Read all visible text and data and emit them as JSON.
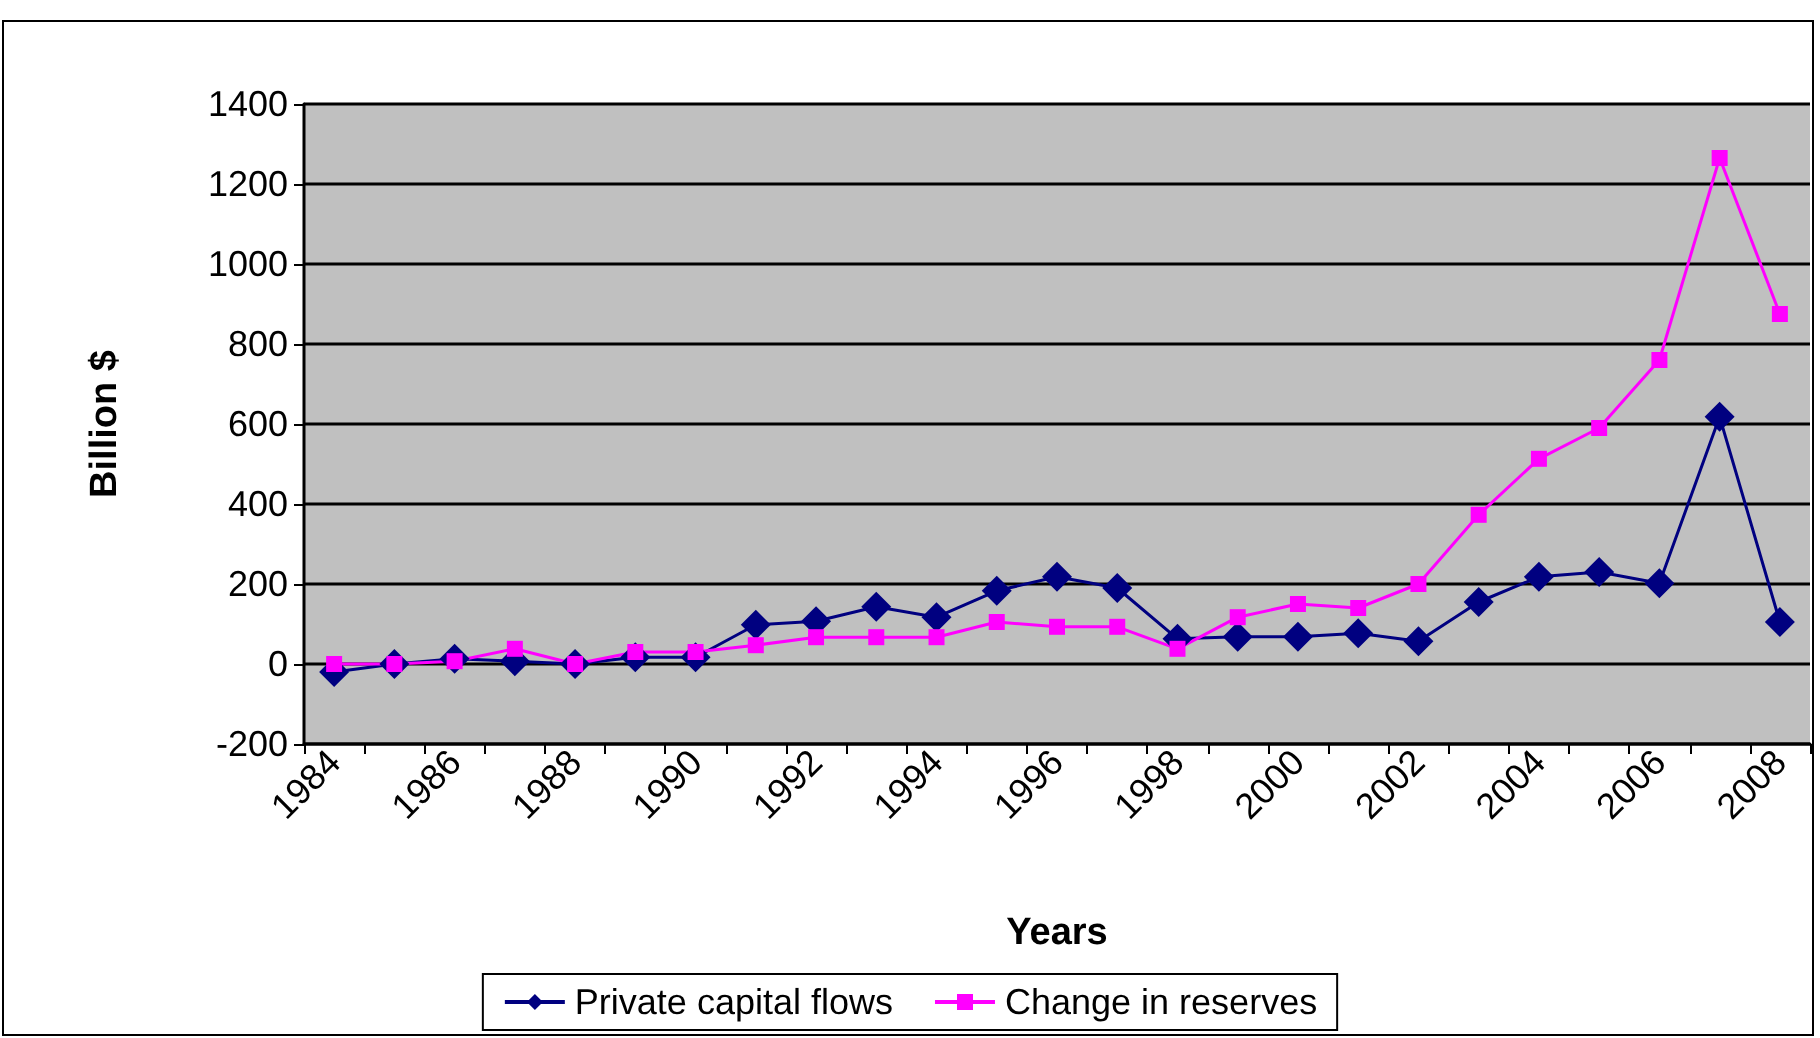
{
  "chart_data": {
    "type": "line",
    "xlabel": "Years",
    "ylabel": "Billion $",
    "categories": [
      "1984",
      null,
      "1986",
      null,
      "1988",
      null,
      "1990",
      null,
      "1992",
      null,
      "1994",
      null,
      "1996",
      null,
      "1998",
      null,
      "2000",
      null,
      "2002",
      null,
      "2004",
      null,
      "2006",
      null,
      "2008"
    ],
    "series": [
      {
        "name": "Private capital flows",
        "color": "#000080",
        "marker": "diamond",
        "values": [
          -20,
          0,
          13,
          7,
          0,
          17,
          17,
          98,
          107,
          143,
          117,
          183,
          218,
          190,
          63,
          68,
          68,
          77,
          57,
          155,
          218,
          230,
          202,
          618,
          105
        ]
      },
      {
        "name": "Change in reserves",
        "color": "#ff00ff",
        "marker": "square",
        "values": [
          0,
          0,
          7,
          38,
          0,
          30,
          30,
          47,
          67,
          67,
          67,
          105,
          93,
          93,
          38,
          117,
          150,
          140,
          200,
          373,
          513,
          590,
          760,
          1265,
          875
        ]
      }
    ],
    "ylim": [
      -200,
      1400
    ],
    "yticks": [
      -200,
      0,
      200,
      400,
      600,
      800,
      1000,
      1200,
      1400
    ],
    "grid": "y",
    "legend": "bottom",
    "line_style": "solid"
  }
}
